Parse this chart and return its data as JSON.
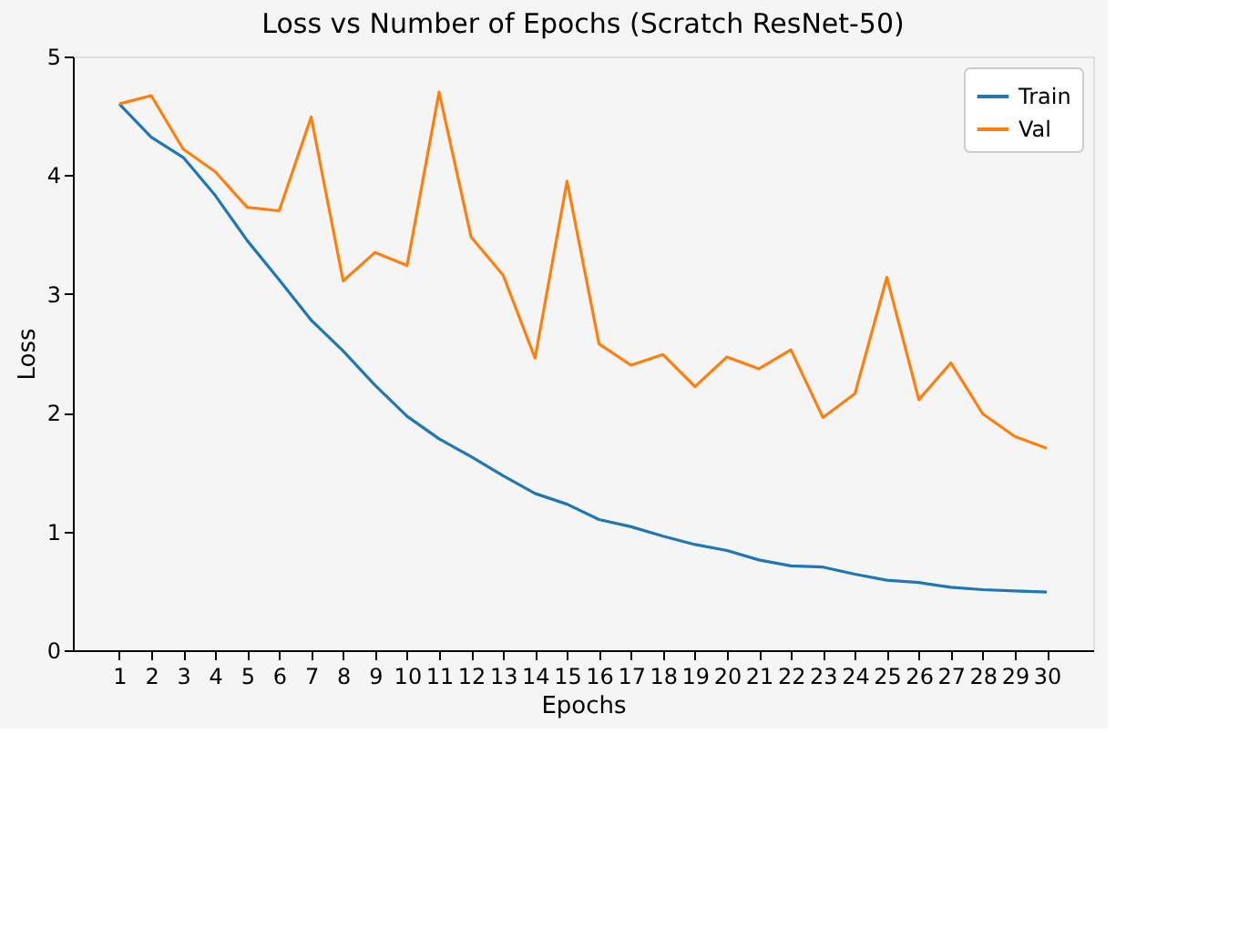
{
  "chart_data": {
    "type": "line",
    "title": "Loss vs Number of Epochs (Scratch ResNet-50)",
    "xlabel": "Epochs",
    "ylabel": "Loss",
    "x": [
      1,
      2,
      3,
      4,
      5,
      6,
      7,
      8,
      9,
      10,
      11,
      12,
      13,
      14,
      15,
      16,
      17,
      18,
      19,
      20,
      21,
      22,
      23,
      24,
      25,
      26,
      27,
      28,
      29,
      30
    ],
    "series": [
      {
        "name": "Train",
        "color": "#1f77b4",
        "values": [
          4.6,
          4.32,
          4.15,
          3.83,
          3.45,
          3.12,
          2.78,
          2.52,
          2.23,
          1.97,
          1.78,
          1.63,
          1.47,
          1.32,
          1.23,
          1.1,
          1.04,
          0.96,
          0.89,
          0.84,
          0.76,
          0.71,
          0.7,
          0.64,
          0.59,
          0.57,
          0.53,
          0.51,
          0.5,
          0.49
        ]
      },
      {
        "name": "Val",
        "color": "#ff7f0e",
        "values": [
          4.6,
          4.67,
          4.22,
          4.03,
          3.73,
          3.7,
          4.49,
          3.11,
          3.35,
          3.24,
          4.7,
          3.48,
          3.16,
          2.46,
          3.95,
          2.58,
          2.4,
          2.49,
          2.22,
          2.47,
          2.37,
          2.53,
          1.96,
          2.16,
          3.14,
          2.11,
          2.42,
          1.99,
          1.8,
          1.7
        ]
      }
    ],
    "xlim": [
      -0.45,
      31.45
    ],
    "xticks": [
      1,
      2,
      3,
      4,
      5,
      6,
      7,
      8,
      9,
      10,
      11,
      12,
      13,
      14,
      15,
      16,
      17,
      18,
      19,
      20,
      21,
      22,
      23,
      24,
      25,
      26,
      27,
      28,
      29,
      30
    ],
    "ylim": [
      0,
      5
    ],
    "yticks": [
      0,
      1,
      2,
      3,
      4,
      5
    ],
    "legend": "top right",
    "grid": false,
    "marker": "none",
    "line_style": "solid"
  }
}
